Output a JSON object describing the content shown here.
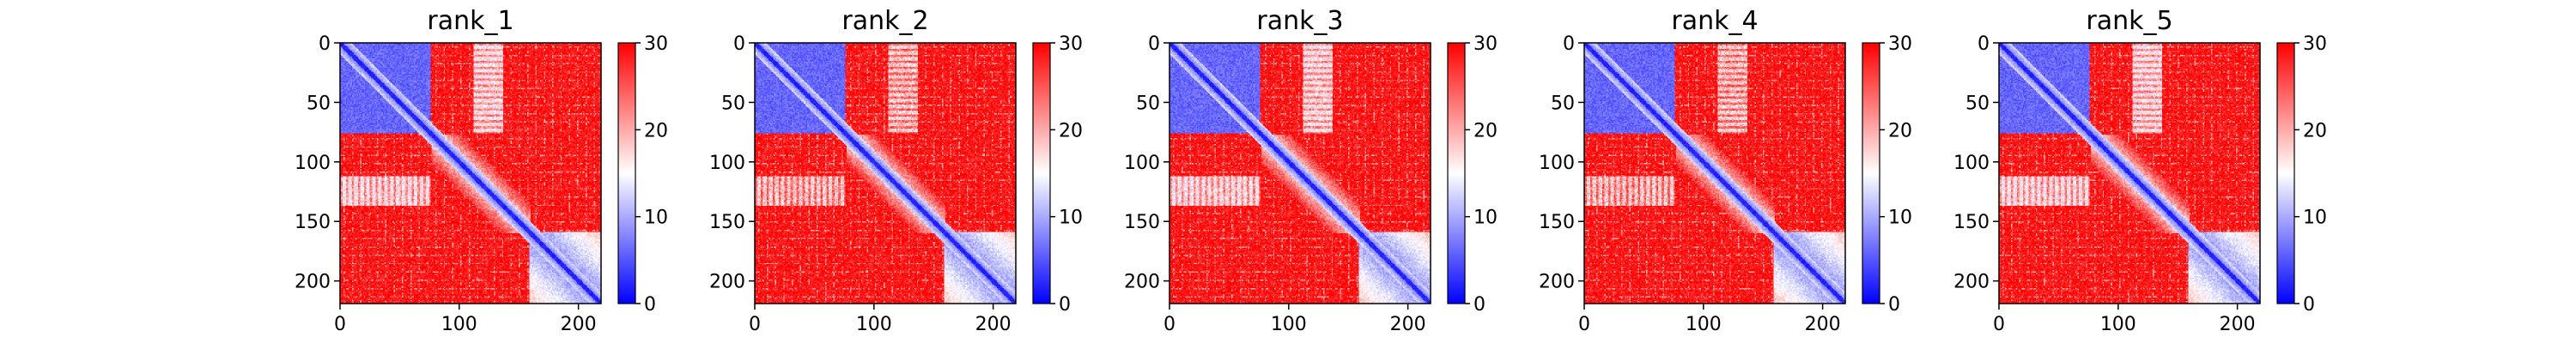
{
  "chart_data": [
    {
      "type": "heatmap",
      "title": "rank_1",
      "matrix_size": 219,
      "xlim": [
        0,
        219
      ],
      "ylim": [
        219,
        0
      ],
      "xticks": [
        "0",
        "100",
        "200"
      ],
      "yticks": [
        "0",
        "50",
        "100",
        "150",
        "200"
      ],
      "colorbar": {
        "range": [
          0,
          30
        ],
        "ticks": [
          "0",
          "10",
          "20",
          "30"
        ],
        "colormap": "bwr"
      }
    },
    {
      "type": "heatmap",
      "title": "rank_2",
      "matrix_size": 219,
      "xlim": [
        0,
        219
      ],
      "ylim": [
        219,
        0
      ],
      "xticks": [
        "0",
        "100",
        "200"
      ],
      "yticks": [
        "0",
        "50",
        "100",
        "150",
        "200"
      ],
      "colorbar": {
        "range": [
          0,
          30
        ],
        "ticks": [
          "0",
          "10",
          "20",
          "30"
        ],
        "colormap": "bwr"
      }
    },
    {
      "type": "heatmap",
      "title": "rank_3",
      "matrix_size": 219,
      "xlim": [
        0,
        219
      ],
      "ylim": [
        219,
        0
      ],
      "xticks": [
        "0",
        "100",
        "200"
      ],
      "yticks": [
        "0",
        "50",
        "100",
        "150",
        "200"
      ],
      "colorbar": {
        "range": [
          0,
          30
        ],
        "ticks": [
          "0",
          "10",
          "20",
          "30"
        ],
        "colormap": "bwr"
      }
    },
    {
      "type": "heatmap",
      "title": "rank_4",
      "matrix_size": 219,
      "xlim": [
        0,
        219
      ],
      "ylim": [
        219,
        0
      ],
      "xticks": [
        "0",
        "100",
        "200"
      ],
      "yticks": [
        "0",
        "50",
        "100",
        "150",
        "200"
      ],
      "colorbar": {
        "range": [
          0,
          30
        ],
        "ticks": [
          "0",
          "10",
          "20",
          "30"
        ],
        "colormap": "bwr"
      }
    },
    {
      "type": "heatmap",
      "title": "rank_5",
      "matrix_size": 219,
      "xlim": [
        0,
        219
      ],
      "ylim": [
        219,
        0
      ],
      "xticks": [
        "0",
        "100",
        "200"
      ],
      "yticks": [
        "0",
        "50",
        "100",
        "150",
        "200"
      ],
      "colorbar": {
        "range": [
          0,
          30
        ],
        "ticks": [
          "0",
          "10",
          "20",
          "30"
        ],
        "colormap": "bwr"
      }
    }
  ],
  "colors": {
    "low": "#0000ff",
    "mid": "#ffffff",
    "high": "#ff0000"
  }
}
